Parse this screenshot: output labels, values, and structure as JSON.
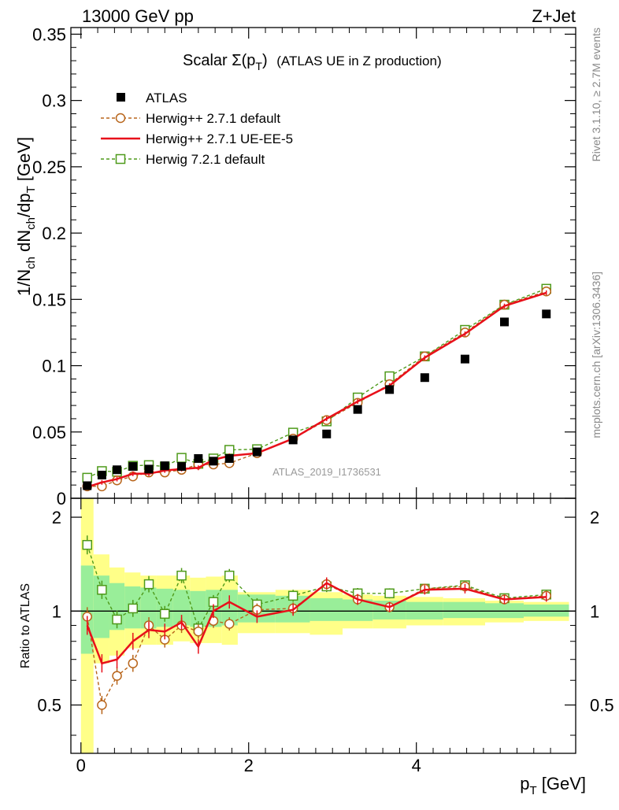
{
  "header": {
    "left": "13000 GeV pp",
    "right": "Z+Jet",
    "title_main": "Scalar Σ(p",
    "title_sub": "T",
    "title_close": ")",
    "title_tail": "(ATLAS UE in Z production)",
    "analysis_id": "ATLAS_2019_I1736531",
    "side_rivet": "Rivet 3.1.10, ≥ 2.7M events",
    "side_mcplots": "mcplots.cern.ch [arXiv:1306.3436]"
  },
  "axes": {
    "ylabel_main": "1/N",
    "ylabel_sub1": "ch",
    "ylabel_mid": " dN",
    "ylabel_sub2": "ch",
    "ylabel_mid2": "/dp",
    "ylabel_sub3": "T",
    "ylabel_unit": " [GeV]",
    "ratio_ylabel": "Ratio to ATLAS",
    "xlabel_main": "p",
    "xlabel_sub": "T",
    "xlabel_unit": " [GeV]"
  },
  "legend": [
    {
      "label": "ATLAS"
    },
    {
      "label": "Herwig++ 2.7.1 default"
    },
    {
      "label": "Herwig++ 2.7.1 UE-EE-5"
    },
    {
      "label": "Herwig 7.2.1 default"
    }
  ],
  "colors": {
    "data": "#000000",
    "hw271_default": "#b8651b",
    "hw271_ueee5": "#e8101a",
    "hw721_default": "#4e9a1a",
    "band_inner": "#99ee99",
    "band_outer": "#ffff88"
  },
  "chart_data": [
    {
      "type": "scatter",
      "panel": "main",
      "xlim": [
        -0.12,
        5.9
      ],
      "ylim": [
        0,
        0.355
      ],
      "xticks": [
        0,
        2,
        4
      ],
      "yticks": [
        0,
        0.05,
        0.1,
        0.15,
        0.2,
        0.25,
        0.3,
        0.35
      ],
      "ytick_labels": [
        "0",
        "0.05",
        "0.1",
        "0.15",
        "0.2",
        "0.25",
        "0.3",
        "0.35"
      ],
      "x": [
        0.075,
        0.25,
        0.43,
        0.62,
        0.81,
        1.0,
        1.2,
        1.4,
        1.58,
        1.77,
        2.1,
        2.53,
        2.93,
        3.3,
        3.68,
        4.1,
        4.58,
        5.05,
        5.55
      ],
      "series": [
        {
          "name": "ATLAS",
          "key": "data",
          "values": [
            0.0095,
            0.0175,
            0.0215,
            0.024,
            0.022,
            0.0245,
            0.024,
            0.03,
            0.028,
            0.03,
            0.035,
            0.044,
            0.0485,
            0.067,
            0.082,
            0.091,
            0.105,
            0.133,
            0.139
          ]
        },
        {
          "name": "Herwig++ 2.7.1 default",
          "key": "hw271_default",
          "values": [
            0.009,
            0.009,
            0.0135,
            0.0165,
            0.0195,
            0.0195,
            0.0215,
            0.0255,
            0.0255,
            0.0265,
            0.034,
            0.045,
            0.059,
            0.072,
            0.086,
            0.107,
            0.125,
            0.146,
            0.156
          ]
        },
        {
          "name": "Herwig++ 2.7.1 UE-EE-5",
          "key": "hw271_ueee5",
          "values": [
            0.0085,
            0.012,
            0.0145,
            0.0185,
            0.0185,
            0.021,
            0.022,
            0.023,
            0.029,
            0.032,
            0.034,
            0.045,
            0.06,
            0.073,
            0.085,
            0.106,
            0.124,
            0.145,
            0.155
          ]
        },
        {
          "name": "Herwig 7.2.1 default",
          "key": "hw721_default",
          "values": [
            0.0155,
            0.0205,
            0.02,
            0.0245,
            0.025,
            0.024,
            0.0305,
            0.026,
            0.03,
            0.0365,
            0.037,
            0.0495,
            0.058,
            0.076,
            0.092,
            0.107,
            0.127,
            0.146,
            0.158
          ]
        }
      ]
    },
    {
      "type": "line",
      "panel": "ratio",
      "ylim": [
        0.35,
        2.3
      ],
      "yticks": [
        0.5,
        1,
        2
      ],
      "ytick_labels": [
        "0.5",
        "1",
        "2"
      ],
      "x_edges": [
        0,
        0.15,
        0.34,
        0.52,
        0.71,
        0.9,
        1.1,
        1.3,
        1.49,
        1.68,
        1.87,
        2.32,
        2.73,
        3.12,
        3.48,
        3.88,
        4.32,
        4.82,
        5.28,
        5.82
      ],
      "band_inner_lo": [
        0.73,
        0.82,
        0.87,
        0.88,
        0.88,
        0.89,
        0.9,
        0.89,
        0.89,
        0.9,
        0.92,
        0.92,
        0.93,
        0.93,
        0.94,
        0.94,
        0.95,
        0.95,
        0.96
      ],
      "band_inner_hi": [
        1.4,
        1.3,
        1.23,
        1.2,
        1.19,
        1.18,
        1.17,
        1.16,
        1.17,
        1.17,
        1.13,
        1.12,
        1.1,
        1.09,
        1.08,
        1.07,
        1.07,
        1.06,
        1.05
      ],
      "band_outer_lo": [
        0.35,
        0.68,
        0.72,
        0.76,
        0.78,
        0.78,
        0.8,
        0.79,
        0.79,
        0.78,
        0.85,
        0.85,
        0.84,
        0.88,
        0.88,
        0.9,
        0.9,
        0.92,
        0.93
      ],
      "band_outer_hi": [
        2.3,
        1.52,
        1.38,
        1.33,
        1.3,
        1.3,
        1.3,
        1.28,
        1.29,
        1.3,
        1.15,
        1.17,
        1.15,
        1.13,
        1.12,
        1.11,
        1.1,
        1.08,
        1.07
      ],
      "series": [
        {
          "name": "Herwig++ 2.7.1 default",
          "key": "hw271_default",
          "values": [
            0.96,
            0.5,
            0.62,
            0.68,
            0.9,
            0.81,
            0.9,
            0.86,
            0.93,
            0.91,
            1.01,
            1.02,
            1.22,
            1.09,
            1.03,
            1.18,
            1.2,
            1.09,
            1.12
          ]
        },
        {
          "name": "Herwig++ 2.7.1 UE-EE-5",
          "key": "hw271_ueee5",
          "values": [
            0.9,
            0.68,
            0.7,
            0.8,
            0.87,
            0.86,
            0.92,
            0.77,
            1.0,
            1.07,
            0.96,
            1.01,
            1.23,
            1.09,
            1.03,
            1.17,
            1.18,
            1.09,
            1.11
          ]
        },
        {
          "name": "Herwig 7.2.1 default",
          "key": "hw721_default",
          "values": [
            1.63,
            1.17,
            0.94,
            1.02,
            1.22,
            0.98,
            1.3,
            0.88,
            1.07,
            1.3,
            1.05,
            1.12,
            1.2,
            1.14,
            1.14,
            1.18,
            1.21,
            1.1,
            1.13
          ]
        }
      ]
    }
  ]
}
